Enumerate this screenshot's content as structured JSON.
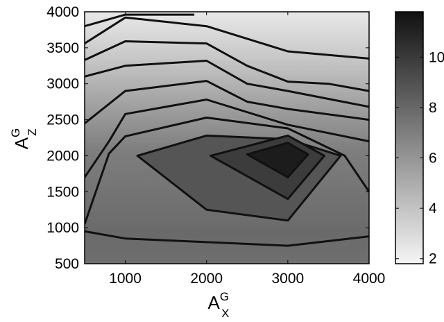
{
  "chart_data": {
    "type": "contour",
    "xlabel": {
      "base": "A",
      "sup": "G",
      "sub": "X"
    },
    "ylabel": {
      "base": "A",
      "sup": "G",
      "sub": "Z"
    },
    "xlim": [
      500,
      4000
    ],
    "ylim": [
      500,
      4000
    ],
    "x_ticks": [
      1000,
      2000,
      3000,
      4000
    ],
    "y_ticks": [
      500,
      1000,
      1500,
      2000,
      2500,
      3000,
      3500,
      4000
    ],
    "colorbar": {
      "range": [
        1.8,
        11.8
      ],
      "ticks": [
        2,
        4,
        6,
        8,
        10
      ],
      "colormap": "gray",
      "light": "#f5f5f5",
      "dark": "#111111"
    },
    "line_color": "#111111",
    "contour_levels": [
      {
        "level": 2.5,
        "points": [
          [
            500,
            3800
          ],
          [
            1000,
            3960
          ],
          [
            1850,
            3960
          ]
        ]
      },
      {
        "level": 3.2,
        "points": [
          [
            500,
            3560
          ],
          [
            1000,
            3920
          ],
          [
            2000,
            3800
          ],
          [
            3000,
            3450
          ],
          [
            4000,
            3350
          ]
        ]
      },
      {
        "level": 3.9,
        "points": [
          [
            500,
            3330
          ],
          [
            1000,
            3590
          ],
          [
            2000,
            3560
          ],
          [
            2500,
            3250
          ],
          [
            3000,
            3030
          ],
          [
            3500,
            3000
          ],
          [
            4000,
            2900
          ]
        ]
      },
      {
        "level": 4.6,
        "points": [
          [
            500,
            3100
          ],
          [
            1000,
            3250
          ],
          [
            2000,
            3320
          ],
          [
            2500,
            3000
          ],
          [
            3000,
            2900
          ],
          [
            4000,
            2680
          ]
        ]
      },
      {
        "level": 5.3,
        "points": [
          [
            500,
            2450
          ],
          [
            1000,
            2900
          ],
          [
            2000,
            3040
          ],
          [
            2500,
            2750
          ],
          [
            3000,
            2650
          ],
          [
            4000,
            2500
          ]
        ]
      },
      {
        "level": 6.0,
        "points": [
          [
            500,
            1700
          ],
          [
            800,
            2200
          ],
          [
            1000,
            2580
          ],
          [
            2000,
            2780
          ],
          [
            3000,
            2430
          ],
          [
            4000,
            2200
          ]
        ]
      },
      {
        "level": 6.7,
        "points": [
          [
            500,
            1050
          ],
          [
            800,
            2030
          ],
          [
            1000,
            2270
          ],
          [
            2000,
            2530
          ],
          [
            3000,
            2380
          ],
          [
            3700,
            2000
          ],
          [
            4000,
            1500
          ]
        ]
      },
      {
        "level": 7.4,
        "points": [
          [
            1150,
            2000
          ],
          [
            2000,
            2280
          ],
          [
            3000,
            2230
          ],
          [
            3650,
            2000
          ],
          [
            3000,
            1100
          ],
          [
            2000,
            1250
          ],
          [
            1150,
            2000
          ]
        ]
      },
      {
        "level": 8.5,
        "points": [
          [
            2050,
            2000
          ],
          [
            3000,
            2280
          ],
          [
            3450,
            2000
          ],
          [
            3000,
            1400
          ],
          [
            2050,
            2000
          ]
        ]
      },
      {
        "level": 9.6,
        "points": [
          [
            2500,
            2020
          ],
          [
            3000,
            2180
          ],
          [
            3250,
            2020
          ],
          [
            3000,
            1700
          ],
          [
            2500,
            2020
          ]
        ]
      },
      {
        "level": 1.9,
        "points": [
          [
            500,
            950
          ],
          [
            1000,
            850
          ],
          [
            2000,
            800
          ],
          [
            3000,
            750
          ],
          [
            4000,
            880
          ]
        ]
      }
    ]
  }
}
